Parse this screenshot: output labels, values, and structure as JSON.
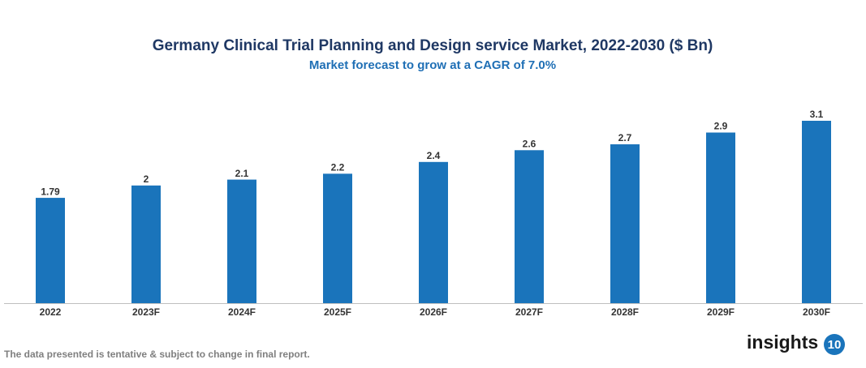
{
  "chart_data": {
    "type": "bar",
    "title": "Germany Clinical Trial Planning and Design service Market, 2022-2030 ($ Bn)",
    "subtitle": "Market forecast to grow at a CAGR of 7.0%",
    "categories": [
      "2022",
      "2023F",
      "2024F",
      "2025F",
      "2026F",
      "2027F",
      "2028F",
      "2029F",
      "2030F"
    ],
    "values": [
      1.79,
      2,
      2.1,
      2.2,
      2.4,
      2.6,
      2.7,
      2.9,
      3.1
    ],
    "color": "#1a74bb",
    "footnote": "The data presented is tentative & subject to change in final report.",
    "brand": "insights",
    "brand_number": "10"
  }
}
